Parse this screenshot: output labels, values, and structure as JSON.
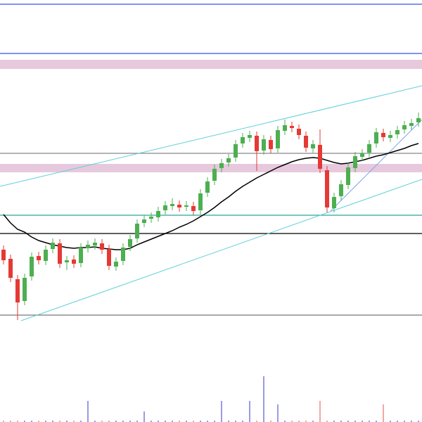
{
  "chart_data": {
    "type": "candlestick",
    "ylim": [
      0,
      600
    ],
    "up_color": "#4caf50",
    "down_color": "#e53935",
    "open": [
      245,
      232,
      203,
      172,
      207,
      236,
      229,
      246,
      254,
      227,
      231,
      226,
      247,
      251,
      254,
      246,
      221,
      229,
      249,
      261,
      283,
      289,
      291,
      301,
      307,
      309,
      306,
      307,
      301,
      326,
      343,
      361,
      369,
      376,
      396,
      404,
      407,
      386,
      401,
      389,
      414,
      421,
      417,
      407,
      389,
      394,
      358,
      304,
      321,
      337,
      361,
      377,
      383,
      396,
      411,
      404,
      409,
      416,
      421,
      426
    ],
    "high": [
      251,
      238,
      209,
      211,
      241,
      242,
      251,
      261,
      260,
      236,
      237,
      254,
      258,
      261,
      260,
      252,
      234,
      254,
      266,
      288,
      294,
      298,
      306,
      314,
      318,
      315,
      314,
      313,
      331,
      348,
      366,
      374,
      381,
      401,
      411,
      414,
      413,
      408,
      407,
      421,
      430,
      427,
      423,
      413,
      401,
      416,
      364,
      326,
      344,
      368,
      384,
      388,
      401,
      418,
      417,
      414,
      421,
      428,
      431,
      440
    ],
    "low": [
      224,
      199,
      145,
      166,
      201,
      224,
      223,
      240,
      219,
      216,
      219,
      220,
      241,
      245,
      239,
      216,
      215,
      223,
      243,
      255,
      277,
      283,
      285,
      295,
      301,
      299,
      300,
      294,
      295,
      320,
      337,
      355,
      363,
      370,
      390,
      398,
      357,
      380,
      382,
      383,
      408,
      412,
      402,
      384,
      383,
      354,
      298,
      298,
      315,
      331,
      355,
      371,
      377,
      390,
      399,
      398,
      403,
      410,
      415,
      420
    ],
    "close": [
      230,
      205,
      170,
      205,
      235,
      230,
      245,
      255,
      225,
      230,
      225,
      248,
      252,
      255,
      245,
      222,
      228,
      248,
      260,
      282,
      288,
      292,
      300,
      308,
      310,
      305,
      308,
      300,
      325,
      342,
      360,
      368,
      375,
      395,
      405,
      408,
      385,
      402,
      388,
      415,
      422,
      418,
      408,
      390,
      395,
      360,
      305,
      320,
      338,
      362,
      378,
      382,
      395,
      412,
      405,
      408,
      415,
      422,
      425,
      432
    ],
    "moving_average": {
      "color": "#000000",
      "values": [
        295,
        283,
        274,
        270,
        263,
        258,
        255,
        252,
        250,
        248,
        247,
        248,
        248,
        249,
        247,
        246,
        245,
        245,
        247,
        252,
        256,
        260,
        264,
        268,
        272,
        277,
        281,
        286,
        292,
        298,
        305,
        313,
        320,
        328,
        335,
        341,
        347,
        352,
        357,
        362,
        366,
        370,
        373,
        375,
        376,
        375,
        372,
        369,
        367,
        368,
        370,
        372,
        375,
        378,
        380,
        383,
        386,
        389,
        393,
        396
      ]
    },
    "levels": [
      {
        "value": 594,
        "color": "#3355ee"
      },
      {
        "value": 524,
        "color": "#3355ee"
      },
      {
        "value": 382,
        "color": "#888888"
      },
      {
        "value": 294,
        "color": "#26a69a"
      },
      {
        "value": 268,
        "color": "#000000"
      },
      {
        "value": 152,
        "color": "#777777"
      }
    ],
    "zones": [
      {
        "from": 502,
        "to": 515,
        "color": "#e7c9dd"
      },
      {
        "from": 355,
        "to": 367,
        "color": "#e7c9dd"
      }
    ],
    "trendlines": [
      {
        "from": [
          -0.5,
          335
        ],
        "to": [
          59.5,
          478
        ],
        "color": "#5fd0d8"
      },
      {
        "from": [
          2.5,
          144
        ],
        "to": [
          59.5,
          345
        ],
        "color": "#5fd0d8"
      },
      {
        "from": [
          46.5,
          300
        ],
        "to": [
          59.5,
          430
        ],
        "color": "#7fa6ee"
      }
    ],
    "volume_ylim": [
      0,
      100
    ],
    "volume_up_color": "#9a9ae6",
    "volume_down_color": "#f2a7a7",
    "volume": [
      2,
      2,
      2,
      2,
      2,
      2,
      2,
      2,
      2,
      2,
      2,
      2,
      30,
      2,
      2,
      2,
      2,
      2,
      2,
      2,
      15,
      2,
      2,
      2,
      2,
      2,
      2,
      2,
      2,
      2,
      2,
      30,
      2,
      2,
      2,
      30,
      2,
      65,
      2,
      25,
      2,
      2,
      2,
      2,
      2,
      30,
      2,
      2,
      2,
      2,
      2,
      2,
      2,
      2,
      25,
      2,
      2,
      2,
      2,
      2
    ]
  }
}
